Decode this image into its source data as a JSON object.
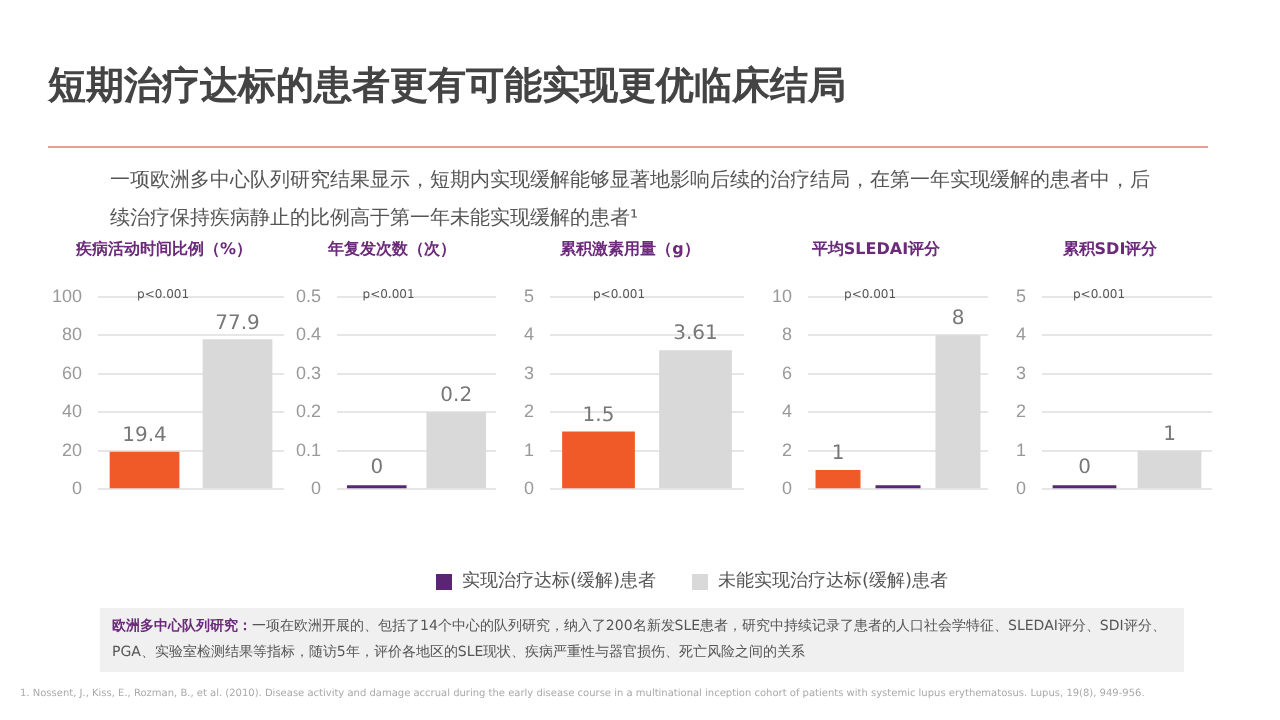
{
  "chart_data": [
    {
      "type": "other",
      "title": "短期治疗达标的患者更有可能实现更优临床结局",
      "subtitle": "一项欧洲多中心队列研究结果显示，短期内实现缓解能够显著地影响后续的治疗结局，在第一年实现缓解的患者中，后续治疗保持疾病静止的比例高于第一年未能实现缓解的患者¹",
      "annotations": [
        "欧洲多中心队列研究：",
        "一项在欧洲开展的、包括了14个中心的队列研究，纳入了200名新发SLE患者，研究中持续记录了患者的人口社会学特征、SLEDAI评分、SDI评分、PGA、实验室检测结果等指标，随访5年，评价各地区的SLE现状、疾病严重性与器官损伤、死亡风险之间的关系",
        "1. Nossent, J., Kiss, E., Rozman, B., et al. (2010). Disease activity and damage accrual during the early disease course in a multinational inception cohort of patients with systemic lupus erythematosus. Lupus, 19(8), 949-956."
      ]
    },
    {
      "type": "bar",
      "title": "疾病活动时间比例（%）",
      "categories": [
        null,
        null
      ],
      "ylim": [
        0,
        100
      ],
      "yticks": [
        0,
        20,
        40,
        60,
        80,
        100
      ],
      "grid": "y",
      "annotations": [
        "p<0.001"
      ],
      "series": [
        {
          "color": "#5b2573",
          "colors": [
            "#f05a28",
            null
          ],
          "values": [
            19.4,
            null
          ],
          "value_labels": [
            "19.4",
            null
          ]
        },
        {
          "color": "#d9d9d9",
          "colors": [
            null,
            "#d9d9d9"
          ],
          "values": [
            null,
            77.9
          ],
          "value_labels": [
            null,
            "77.9"
          ]
        }
      ]
    },
    {
      "type": "bar",
      "title": "年复发次数（次）",
      "categories": [
        null,
        null
      ],
      "ylim": [
        0,
        0.5
      ],
      "yticks": [
        0,
        0.1,
        0.2,
        0.3,
        0.4,
        0.5
      ],
      "grid": "y",
      "legend": "bottom",
      "annotations": [
        "p<0.001"
      ],
      "series": [
        {
          "name": "实现治疗达标(缓解)患者",
          "color": "#5b2573",
          "colors": [
            "#5b2573",
            null
          ],
          "values": [
            0,
            null
          ],
          "value_labels": [
            "0",
            null
          ]
        },
        {
          "name": "未能实现治疗达标(缓解)患者",
          "color": "#d9d9d9",
          "colors": [
            null,
            "#d9d9d9"
          ],
          "values": [
            null,
            0.2
          ],
          "value_labels": [
            null,
            "0.2"
          ]
        }
      ]
    },
    {
      "type": "bar",
      "title": "累积激素用量（g）",
      "categories": [
        null,
        null
      ],
      "ylim": [
        0,
        5
      ],
      "yticks": [
        0,
        1,
        2,
        3,
        4,
        5
      ],
      "grid": "y",
      "annotations": [
        "p<0.001"
      ],
      "series": [
        {
          "color": "#5b2573",
          "colors": [
            "#f05a28",
            null
          ],
          "values": [
            1.5,
            null
          ],
          "value_labels": [
            "1.5",
            null
          ]
        },
        {
          "color": "#d9d9d9",
          "colors": [
            null,
            "#d9d9d9"
          ],
          "values": [
            null,
            3.61
          ],
          "value_labels": [
            null,
            "3.61"
          ]
        }
      ]
    },
    {
      "type": "bar",
      "title": "平均SLEDAI评分",
      "categories": [
        null,
        null,
        null
      ],
      "ylim": [
        0,
        10
      ],
      "yticks": [
        0,
        2,
        4,
        6,
        8,
        10
      ],
      "grid": "y",
      "annotations": [
        "p<0.001"
      ],
      "series": [
        {
          "color": "#5b2573",
          "colors": [
            "#f05a28",
            "#5b2573",
            null
          ],
          "values": [
            1,
            0,
            null
          ],
          "value_labels": [
            "1",
            null,
            null
          ]
        },
        {
          "color": "#d9d9d9",
          "colors": [
            null,
            null,
            "#d9d9d9"
          ],
          "values": [
            null,
            null,
            8
          ],
          "value_labels": [
            null,
            null,
            "8"
          ]
        }
      ]
    },
    {
      "type": "bar",
      "title": "累积SDI评分",
      "categories": [
        null,
        null
      ],
      "ylim": [
        0,
        5
      ],
      "yticks": [
        0,
        1,
        2,
        3,
        4,
        5
      ],
      "grid": "y",
      "annotations": [
        "p<0.001"
      ],
      "series": [
        {
          "color": "#5b2573",
          "colors": [
            "#5b2573",
            null
          ],
          "values": [
            0,
            null
          ],
          "value_labels": [
            "0",
            null
          ]
        },
        {
          "color": "#d9d9d9",
          "colors": [
            null,
            "#d9d9d9"
          ],
          "values": [
            null,
            1
          ],
          "value_labels": [
            null,
            "1"
          ]
        }
      ]
    }
  ]
}
